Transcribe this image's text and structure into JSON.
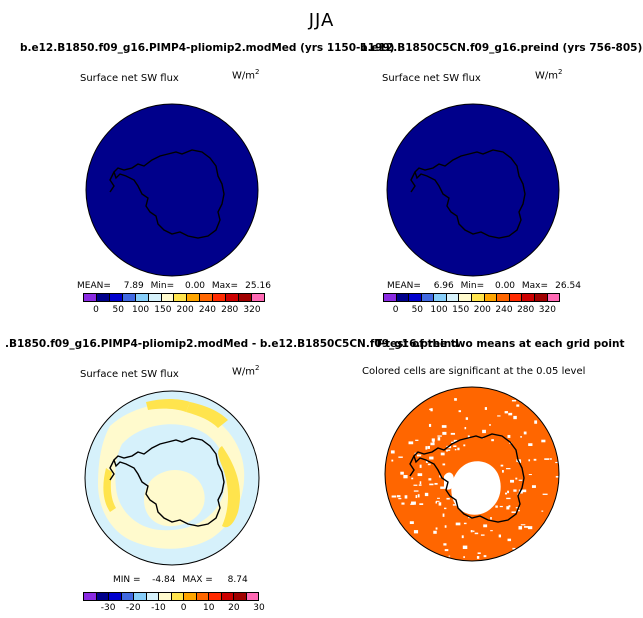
{
  "season": "JJA",
  "panels": {
    "top_left": {
      "title": "b.e12.B1850.f09_g16.PIMP4-pliomip2.modMed (yrs 1150-1199)",
      "variable": "Surface net SW flux",
      "units_base": "W/m",
      "units_exp": "2",
      "stats": {
        "mean_label": "MEAN=",
        "mean": "7.89",
        "min_label": "Min=",
        "min": "0.00",
        "max_label": "Max=",
        "max": "25.16"
      }
    },
    "top_right": {
      "title": "b.e12.B1850C5CN.f09_g16.preind (yrs 756-805)",
      "variable": "Surface net SW flux",
      "units_base": "W/m",
      "units_exp": "2",
      "stats": {
        "mean_label": "MEAN=",
        "mean": "6.96",
        "min_label": "Min=",
        "min": "0.00",
        "max_label": "Max=",
        "max": "26.54"
      }
    },
    "bottom_left": {
      "title": ".B1850.f09_g16.PIMP4-pliomip2.modMed - b.e12.B1850C5CN.f09_g16.preind",
      "variable": "Surface net SW flux",
      "units_base": "W/m",
      "units_exp": "2",
      "stats": {
        "min_label": "MIN =",
        "min": "-4.84",
        "max_label": "MAX =",
        "max": "8.74"
      }
    },
    "bottom_right": {
      "title": "T-test of the two means at each grid point",
      "subtitle": "Colored cells are significant at the 0.05 level"
    }
  },
  "colorbars": {
    "absolute": {
      "colors": [
        "#8a2be2",
        "#00008b",
        "#0000cd",
        "#4169e1",
        "#87cefa",
        "#d6f1fb",
        "#fffacd",
        "#ffe44d",
        "#ffa500",
        "#ff6600",
        "#ff2a00",
        "#cc0000",
        "#a00000",
        "#ff69b4"
      ],
      "tick_labels": [
        "0",
        "50",
        "100",
        "150",
        "200",
        "240",
        "280",
        "320"
      ]
    },
    "difference": {
      "colors": [
        "#8a2be2",
        "#00008b",
        "#0000cd",
        "#4169e1",
        "#87cefa",
        "#d6f1fb",
        "#fffacd",
        "#ffe44d",
        "#ffa500",
        "#ff6600",
        "#ff2a00",
        "#cc0000",
        "#a00000",
        "#ff69b4"
      ],
      "tick_labels": [
        "-30",
        "-20",
        "-10",
        "0",
        "10",
        "20",
        "30"
      ]
    }
  },
  "map_colors": {
    "abs_field": "#00008b",
    "diff_background": "#d6f1fb",
    "diff_pale": "#fffacd",
    "diff_yellow": "#ffe44d",
    "ttest_significant": "#ff6600"
  }
}
